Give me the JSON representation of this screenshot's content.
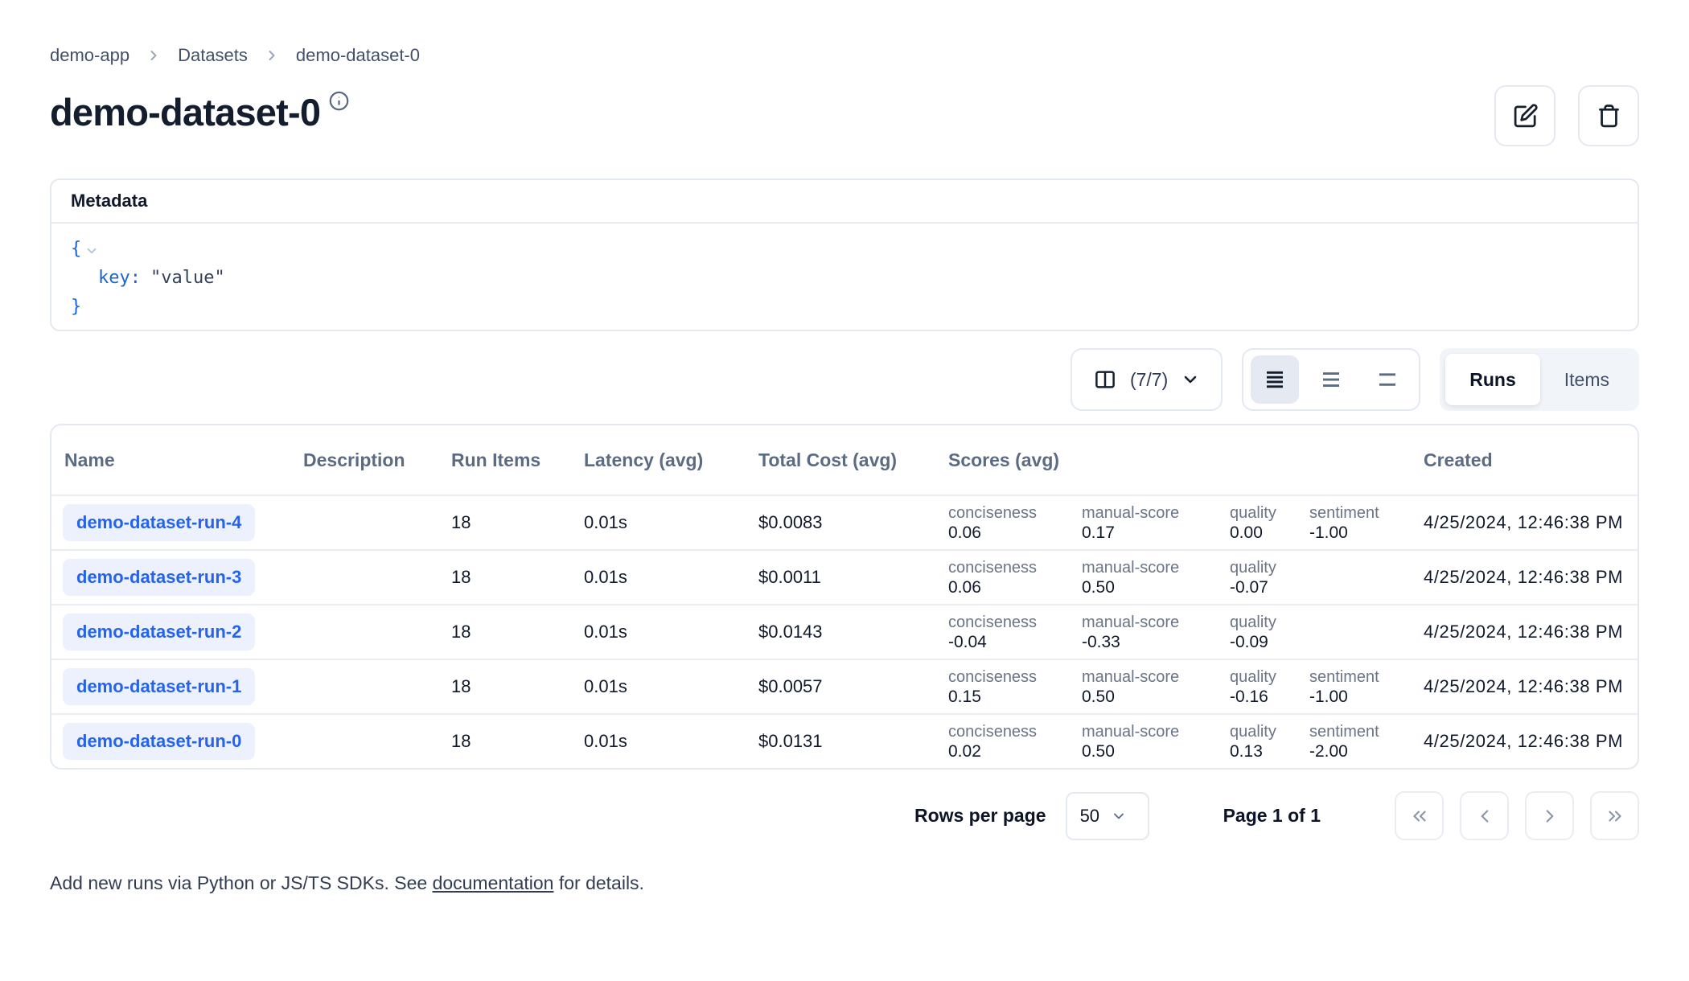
{
  "breadcrumb": {
    "items": [
      "demo-app",
      "Datasets",
      "demo-dataset-0"
    ]
  },
  "header": {
    "title": "demo-dataset-0"
  },
  "icons": {
    "info": "info-circle",
    "edit": "pencil-square",
    "delete": "trash",
    "columns": "columns-panel",
    "columns_chevron": "chevron-down",
    "row_height_active": "rows-dense",
    "row_height_medium": "rows-medium",
    "row_height_tall": "rows-tall",
    "json_collapse": "chevron-down",
    "select_chevron": "chevron-down",
    "first_page": "chevrons-left",
    "prev_page": "chevron-left",
    "next_page": "chevron-right",
    "last_page": "chevrons-right",
    "breadcrumb_separator": "chevron-right"
  },
  "metadata": {
    "title": "Metadata",
    "json": {
      "open_brace": "{",
      "key_token": "key:",
      "value_token": "\"value\"",
      "close_brace": "}"
    }
  },
  "toolbar": {
    "columns_button_label": "(7/7)",
    "view_tabs": [
      {
        "label": "Runs",
        "active": true
      },
      {
        "label": "Items",
        "active": false
      }
    ]
  },
  "table": {
    "columns": [
      "Name",
      "Description",
      "Run Items",
      "Latency (avg)",
      "Total Cost (avg)",
      "Scores (avg)",
      "Created"
    ],
    "rows": [
      {
        "name": "demo-dataset-run-4",
        "description": "",
        "run_items": "18",
        "latency": "0.01s",
        "total_cost": "$0.0083",
        "scores": [
          {
            "label": "conciseness",
            "value": "0.06"
          },
          {
            "label": "manual-score",
            "value": "0.17"
          },
          {
            "label": "quality",
            "value": "0.00"
          },
          {
            "label": "sentiment",
            "value": "-1.00"
          }
        ],
        "created": "4/25/2024, 12:46:38 PM"
      },
      {
        "name": "demo-dataset-run-3",
        "description": "",
        "run_items": "18",
        "latency": "0.01s",
        "total_cost": "$0.0011",
        "scores": [
          {
            "label": "conciseness",
            "value": "0.06"
          },
          {
            "label": "manual-score",
            "value": "0.50"
          },
          {
            "label": "quality",
            "value": "-0.07"
          }
        ],
        "created": "4/25/2024, 12:46:38 PM"
      },
      {
        "name": "demo-dataset-run-2",
        "description": "",
        "run_items": "18",
        "latency": "0.01s",
        "total_cost": "$0.0143",
        "scores": [
          {
            "label": "conciseness",
            "value": "-0.04"
          },
          {
            "label": "manual-score",
            "value": "-0.33"
          },
          {
            "label": "quality",
            "value": "-0.09"
          }
        ],
        "created": "4/25/2024, 12:46:38 PM"
      },
      {
        "name": "demo-dataset-run-1",
        "description": "",
        "run_items": "18",
        "latency": "0.01s",
        "total_cost": "$0.0057",
        "scores": [
          {
            "label": "conciseness",
            "value": "0.15"
          },
          {
            "label": "manual-score",
            "value": "0.50"
          },
          {
            "label": "quality",
            "value": "-0.16"
          },
          {
            "label": "sentiment",
            "value": "-1.00"
          }
        ],
        "created": "4/25/2024, 12:46:38 PM"
      },
      {
        "name": "demo-dataset-run-0",
        "description": "",
        "run_items": "18",
        "latency": "0.01s",
        "total_cost": "$0.0131",
        "scores": [
          {
            "label": "conciseness",
            "value": "0.02"
          },
          {
            "label": "manual-score",
            "value": "0.50"
          },
          {
            "label": "quality",
            "value": "0.13"
          },
          {
            "label": "sentiment",
            "value": "-2.00"
          }
        ],
        "created": "4/25/2024, 12:46:38 PM"
      }
    ]
  },
  "pagination": {
    "rows_per_page_label": "Rows per page",
    "rows_per_page_value": "50",
    "page_status": "Page 1 of 1"
  },
  "footer": {
    "text_before": "Add new runs via Python or JS/TS SDKs. See ",
    "link_text": "documentation",
    "text_after": " for details."
  },
  "colors": {
    "accent_blue": "#2563eb",
    "name_chip_bg": "#ecf1fd",
    "json_blue": "#1d63d8",
    "border": "#e4e9f1",
    "header_text": "#5c6b84"
  }
}
